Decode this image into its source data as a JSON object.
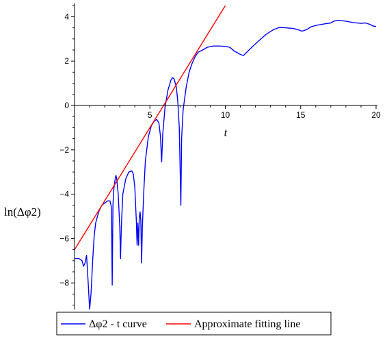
{
  "chart_data": {
    "type": "line",
    "title": "",
    "xlabel": "t",
    "ylabel": "ln(Δφ2)",
    "xlim": [
      0,
      20
    ],
    "ylim": [
      -9.2,
      4.5
    ],
    "x_ticks": [
      5,
      10,
      15,
      20
    ],
    "y_ticks": [
      4,
      2,
      0,
      -2,
      -4,
      -6,
      -8
    ],
    "x_tick_labels": [
      "5",
      "10",
      "15",
      "20"
    ],
    "y_tick_labels": [
      "4",
      "2",
      "0",
      "−2",
      "−4",
      "−6",
      "−8"
    ],
    "grid": false,
    "legend_position": "bottom",
    "series": [
      {
        "name": "Δφ2 - t curve",
        "color": "#0000ff",
        "points": [
          [
            0,
            -6.9
          ],
          [
            0.3,
            -6.9
          ],
          [
            0.5,
            -7.0
          ],
          [
            0.6,
            -7.25
          ],
          [
            0.7,
            -7.1
          ],
          [
            0.8,
            -6.75
          ],
          [
            0.9,
            -7.9
          ],
          [
            1.0,
            -9.2
          ],
          [
            1.1,
            -8.4
          ],
          [
            1.2,
            -7.0
          ],
          [
            1.3,
            -5.9
          ],
          [
            1.4,
            -5.3
          ],
          [
            1.6,
            -4.8
          ],
          [
            1.8,
            -4.5
          ],
          [
            2.0,
            -4.4
          ],
          [
            2.2,
            -4.3
          ],
          [
            2.35,
            -4.3
          ],
          [
            2.45,
            -4.6
          ],
          [
            2.5,
            -8.1
          ],
          [
            2.55,
            -4.5
          ],
          [
            2.6,
            -3.8
          ],
          [
            2.7,
            -3.3
          ],
          [
            2.75,
            -3.15
          ],
          [
            2.8,
            -3.3
          ],
          [
            2.9,
            -4.0
          ],
          [
            3.0,
            -5.5
          ],
          [
            3.05,
            -6.9
          ],
          [
            3.1,
            -5.5
          ],
          [
            3.2,
            -4.0
          ],
          [
            3.4,
            -3.3
          ],
          [
            3.6,
            -3.0
          ],
          [
            3.8,
            -2.95
          ],
          [
            3.9,
            -3.1
          ],
          [
            4.0,
            -3.7
          ],
          [
            4.1,
            -5.2
          ],
          [
            4.15,
            -6.3
          ],
          [
            4.2,
            -5.3
          ],
          [
            4.25,
            -6.3
          ],
          [
            4.3,
            -5.0
          ],
          [
            4.35,
            -4.8
          ],
          [
            4.4,
            -5.2
          ],
          [
            4.45,
            -7.1
          ],
          [
            4.5,
            -5.5
          ],
          [
            4.6,
            -3.8
          ],
          [
            4.7,
            -2.5
          ],
          [
            4.9,
            -1.4
          ],
          [
            5.1,
            -0.9
          ],
          [
            5.3,
            -0.7
          ],
          [
            5.45,
            -0.63
          ],
          [
            5.6,
            -0.8
          ],
          [
            5.7,
            -1.4
          ],
          [
            5.78,
            -2.55
          ],
          [
            5.85,
            -1.3
          ],
          [
            6.0,
            -0.1
          ],
          [
            6.2,
            0.7
          ],
          [
            6.4,
            1.15
          ],
          [
            6.5,
            1.25
          ],
          [
            6.6,
            1.2
          ],
          [
            6.75,
            0.85
          ],
          [
            6.85,
            0.2
          ],
          [
            6.95,
            -1.0
          ],
          [
            7.05,
            -4.5
          ],
          [
            7.1,
            -1.5
          ],
          [
            7.2,
            -0.2
          ],
          [
            7.4,
            0.8
          ],
          [
            7.6,
            1.5
          ],
          [
            7.8,
            1.9
          ],
          [
            8.0,
            2.2
          ],
          [
            8.2,
            2.4
          ],
          [
            8.5,
            2.5
          ],
          [
            8.8,
            2.62
          ],
          [
            9.2,
            2.68
          ],
          [
            9.6,
            2.68
          ],
          [
            10.0,
            2.66
          ],
          [
            10.3,
            2.62
          ],
          [
            10.6,
            2.45
          ],
          [
            11.0,
            2.3
          ],
          [
            11.2,
            2.25
          ],
          [
            11.5,
            2.45
          ],
          [
            11.8,
            2.65
          ],
          [
            12.2,
            2.9
          ],
          [
            12.7,
            3.2
          ],
          [
            13.2,
            3.42
          ],
          [
            13.6,
            3.52
          ],
          [
            14.0,
            3.5
          ],
          [
            14.5,
            3.47
          ],
          [
            14.8,
            3.42
          ],
          [
            15.1,
            3.35
          ],
          [
            15.4,
            3.42
          ],
          [
            15.7,
            3.55
          ],
          [
            16.1,
            3.62
          ],
          [
            16.6,
            3.68
          ],
          [
            17.0,
            3.72
          ],
          [
            17.2,
            3.8
          ],
          [
            17.5,
            3.84
          ],
          [
            18.0,
            3.8
          ],
          [
            18.5,
            3.73
          ],
          [
            19.0,
            3.7
          ],
          [
            19.3,
            3.72
          ],
          [
            19.6,
            3.65
          ],
          [
            19.8,
            3.58
          ],
          [
            20.0,
            3.56
          ]
        ]
      },
      {
        "name": "Approximate fitting line",
        "color": "#ff0000",
        "points": [
          [
            0,
            -6.5
          ],
          [
            10.0,
            4.5
          ]
        ]
      }
    ]
  }
}
